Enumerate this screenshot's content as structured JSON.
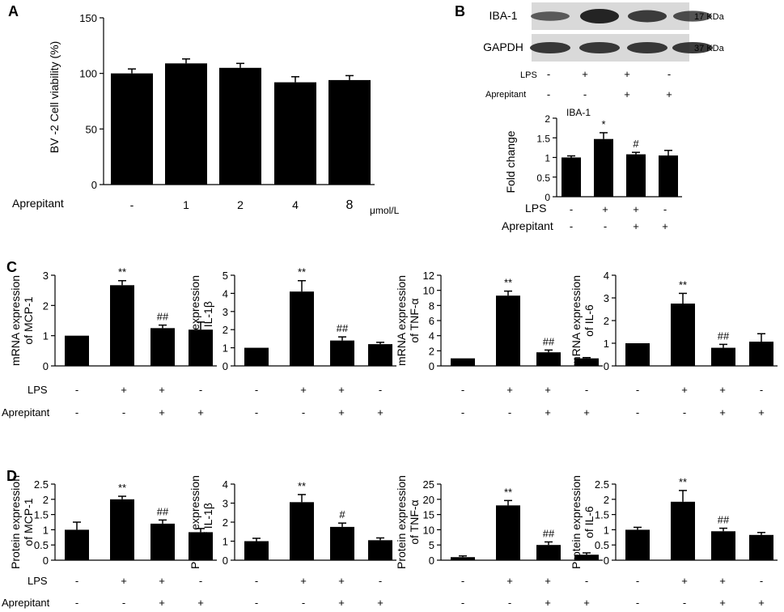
{
  "panels": {
    "A": {
      "letter": "A",
      "chart_data": {
        "type": "bar",
        "categories": [
          "-",
          "1",
          "2",
          "4",
          "8"
        ],
        "values": [
          100,
          109,
          105,
          92,
          94
        ],
        "errors": [
          4,
          4,
          4,
          5,
          4
        ],
        "ylabel": "BV -2  Cell viability (%)",
        "ylim": [
          0,
          150
        ],
        "yticks": [
          0,
          50,
          100,
          150
        ],
        "row_label": "Aprepitant",
        "unit": "μmol/L"
      }
    },
    "B": {
      "letter": "B",
      "blot": {
        "rows": [
          {
            "label": "IBA-1",
            "size": "17 KDa"
          },
          {
            "label": "GAPDH",
            "size": "37 KDa"
          }
        ],
        "lps_label": "LPS",
        "lps_signs": [
          "-",
          "+",
          "+",
          "-"
        ],
        "aprepitant_label": "Aprepitant",
        "aprepitant_signs": [
          "-",
          "-",
          "+",
          "+"
        ]
      },
      "chart_data": {
        "type": "bar",
        "title": "IBA-1",
        "values": [
          1.0,
          1.47,
          1.08,
          1.05
        ],
        "errors": [
          0.04,
          0.16,
          0.05,
          0.13
        ],
        "sig": [
          "",
          "*",
          "#",
          ""
        ],
        "ylabel": "Fold change",
        "ylim": [
          0,
          2
        ],
        "yticks": [
          "0",
          "0.5",
          "1",
          "1.5",
          "2"
        ],
        "lps_label": "LPS",
        "aprepitant_label": "Aprepitant",
        "lps_signs": [
          "-",
          "+",
          "+",
          "-"
        ],
        "aprepitant_signs": [
          "-",
          "-",
          "+",
          "+"
        ]
      }
    },
    "C": {
      "letter": "C",
      "lps_label": "LPS",
      "aprepitant_label": "Aprepitant",
      "lps_signs": [
        "-",
        "+",
        "+",
        "-"
      ],
      "aprepitant_signs": [
        "-",
        "-",
        "+",
        "+"
      ],
      "chart_data": [
        {
          "type": "bar",
          "ylabel_1": "mRNA expression",
          "ylabel_2": "of MCP-1",
          "ylim": [
            0,
            3
          ],
          "yticks": [
            "0",
            "1",
            "2",
            "3"
          ],
          "values": [
            1.0,
            2.67,
            1.25,
            1.2
          ],
          "errors": [
            0,
            0.15,
            0.1,
            0.25
          ],
          "sig": [
            "",
            "**",
            "##",
            ""
          ]
        },
        {
          "type": "bar",
          "ylabel_1": "mRNA expression",
          "ylabel_2": "of IL-1β",
          "ylim": [
            0,
            5
          ],
          "yticks": [
            "0",
            "1",
            "2",
            "3",
            "4",
            "5"
          ],
          "values": [
            1.0,
            4.1,
            1.4,
            1.2
          ],
          "errors": [
            0,
            0.6,
            0.2,
            0.1
          ],
          "sig": [
            "",
            "**",
            "##",
            ""
          ]
        },
        {
          "type": "bar",
          "ylabel_1": "mRNA expression",
          "ylabel_2": "of TNF-α",
          "ylim": [
            0,
            12
          ],
          "yticks": [
            "0",
            "2",
            "4",
            "6",
            "8",
            "10",
            "12"
          ],
          "values": [
            1.0,
            9.3,
            1.8,
            1.0
          ],
          "errors": [
            0,
            0.6,
            0.3,
            0.1
          ],
          "sig": [
            "",
            "**",
            "##",
            ""
          ]
        },
        {
          "type": "bar",
          "ylabel_1": "mRNA expression",
          "ylabel_2": "of IL-6",
          "ylim": [
            0,
            4
          ],
          "yticks": [
            "0",
            "1",
            "2",
            "3",
            "4"
          ],
          "values": [
            1.0,
            2.75,
            0.8,
            1.07
          ],
          "errors": [
            0,
            0.45,
            0.15,
            0.35
          ],
          "sig": [
            "",
            "**",
            "##",
            ""
          ]
        }
      ]
    },
    "D": {
      "letter": "D",
      "lps_label": "LPS",
      "aprepitant_label": "Aprepitant",
      "lps_signs": [
        "-",
        "+",
        "+",
        "-"
      ],
      "aprepitant_signs": [
        "-",
        "-",
        "+",
        "+"
      ],
      "chart_data": [
        {
          "type": "bar",
          "ylabel_1": "Protein expression",
          "ylabel_2": "of MCP-1",
          "ylim": [
            0,
            2.5
          ],
          "yticks": [
            "0",
            "0.5",
            "1",
            "1.5",
            "2",
            "2.5"
          ],
          "values": [
            1.0,
            2.0,
            1.2,
            0.92
          ],
          "errors": [
            0.25,
            0.1,
            0.12,
            0.12
          ],
          "sig": [
            "",
            "**",
            "##",
            ""
          ]
        },
        {
          "type": "bar",
          "ylabel_1": "Protein expression",
          "ylabel_2": "of IL-1β",
          "ylim": [
            0,
            4
          ],
          "yticks": [
            "0",
            "1",
            "2",
            "3",
            "4"
          ],
          "values": [
            1.0,
            3.05,
            1.75,
            1.05
          ],
          "errors": [
            0.15,
            0.4,
            0.2,
            0.12
          ],
          "sig": [
            "",
            "**",
            "#",
            ""
          ]
        },
        {
          "type": "bar",
          "ylabel_1": "Protein expression",
          "ylabel_2": "of TNF-α",
          "ylim": [
            0,
            25
          ],
          "yticks": [
            "0",
            "5",
            "10",
            "15",
            "20",
            "25"
          ],
          "values": [
            1.0,
            18.0,
            5.0,
            1.8
          ],
          "errors": [
            0.4,
            1.6,
            1.0,
            0.6
          ],
          "sig": [
            "",
            "**",
            "##",
            ""
          ]
        },
        {
          "type": "bar",
          "ylabel_1": "Protein expression",
          "ylabel_2": "of IL-6",
          "ylim": [
            0,
            2.5
          ],
          "yticks": [
            "0",
            "0.5",
            "1",
            "1.5",
            "2",
            "2.5"
          ],
          "values": [
            1.0,
            1.92,
            0.95,
            0.83
          ],
          "errors": [
            0.08,
            0.37,
            0.1,
            0.08
          ],
          "sig": [
            "",
            "**",
            "##",
            ""
          ]
        }
      ]
    }
  }
}
